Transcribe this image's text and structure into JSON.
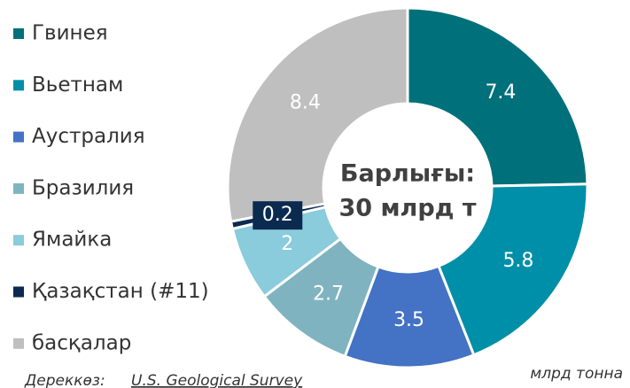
{
  "chart_data": {
    "type": "donut",
    "categories": [
      "Гвинея",
      "Вьетнам",
      "Аустралия",
      "Бразилия",
      "Ямайка",
      "Қазақстан (#11)",
      "басқалар"
    ],
    "values": [
      7.4,
      5.8,
      3.5,
      2.7,
      2.0,
      0.2,
      8.4
    ],
    "colors": [
      "#00707a",
      "#008fa8",
      "#4472c4",
      "#7fb3bf",
      "#8acbdc",
      "#0b2a4f",
      "#bfbfbf"
    ],
    "center_label": [
      "Барлығы:",
      "30 млрд т"
    ],
    "unit": "млрд тонна",
    "source_prefix": "Дереккөз:",
    "source": "U.S. Geological Survey"
  }
}
